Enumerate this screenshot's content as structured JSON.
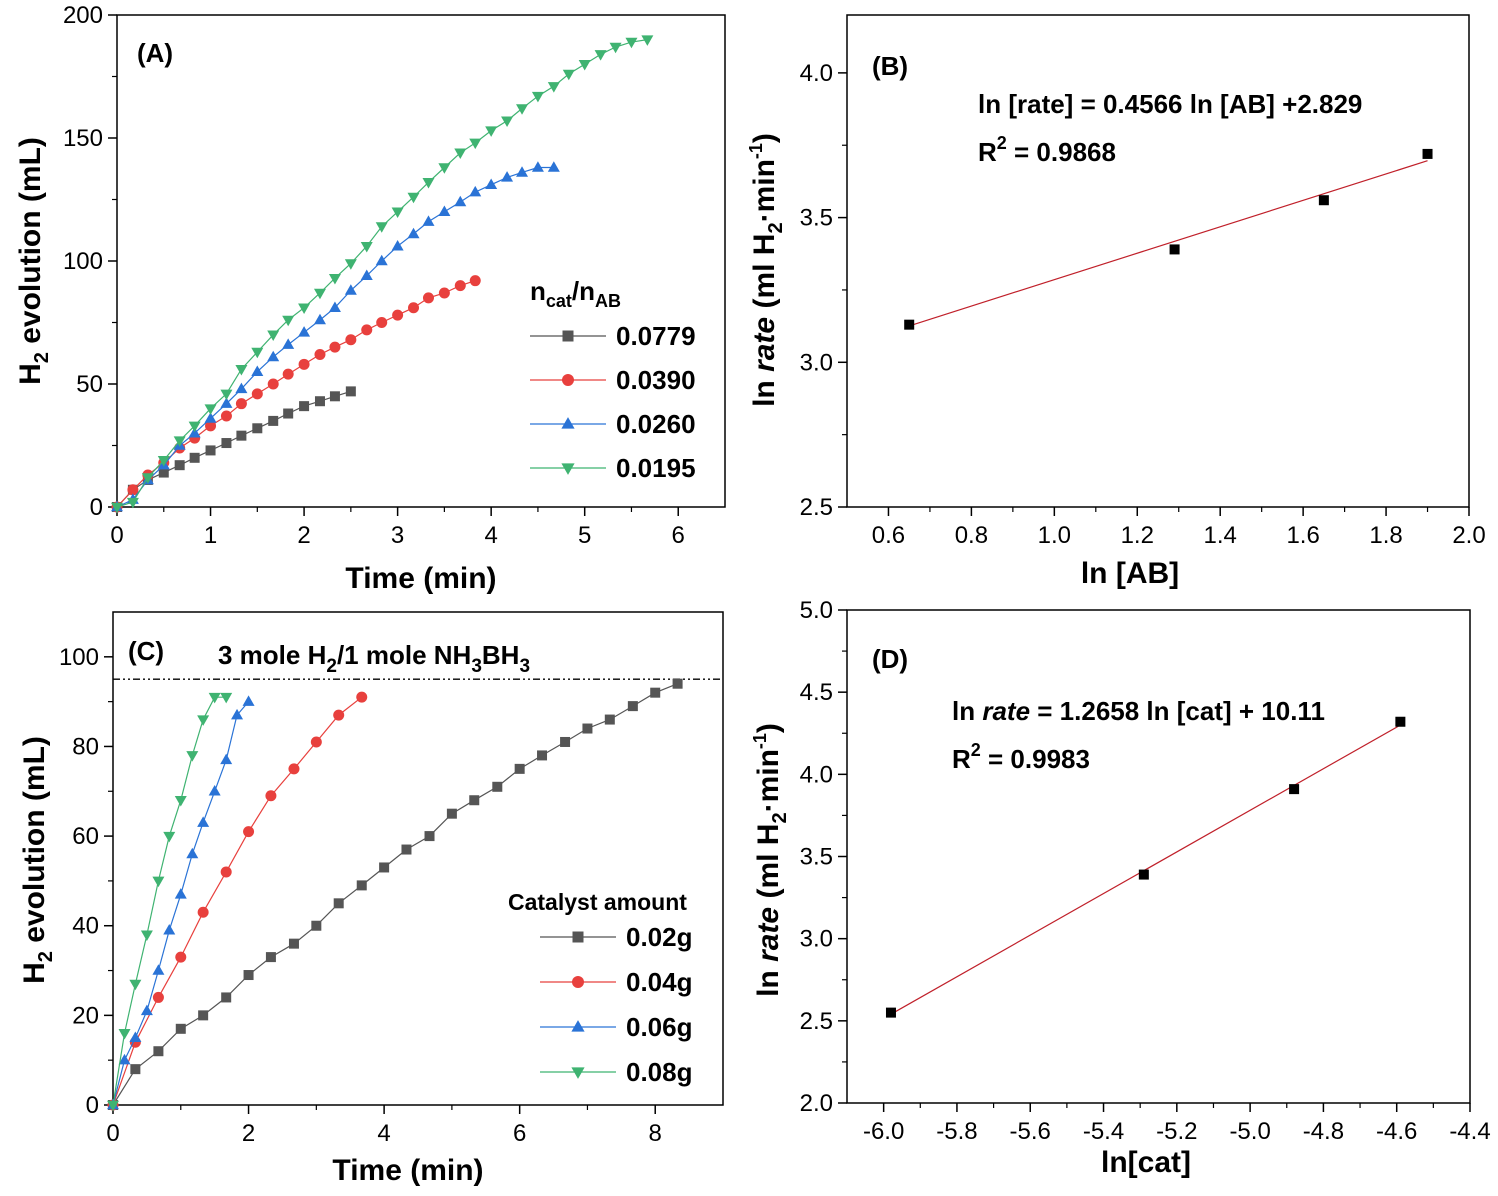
{
  "chart_data": [
    {
      "id": "A",
      "type": "line",
      "panel_label": "(A)",
      "xlabel": "Time (min)",
      "ylabel_main": "H",
      "ylabel_sub": "2",
      "ylabel_tail": " evolution (mL)",
      "xlim": [
        0,
        6.5
      ],
      "ylim": [
        0,
        200
      ],
      "xticks": [
        0,
        1,
        2,
        3,
        4,
        5,
        6
      ],
      "yticks": [
        0,
        50,
        100,
        150,
        200
      ],
      "legend_title_main": "n",
      "legend_title_sub1": "cat",
      "legend_title_mid": "/n",
      "legend_title_sub2": "AB",
      "series": [
        {
          "name": "0.0779",
          "color": "#555555",
          "marker": "square",
          "x": [
            0,
            0.17,
            0.33,
            0.5,
            0.67,
            0.83,
            1.0,
            1.17,
            1.33,
            1.5,
            1.67,
            1.83,
            2.0,
            2.17,
            2.33,
            2.5
          ],
          "y": [
            0,
            7,
            11,
            14,
            17,
            20,
            23,
            26,
            29,
            32,
            35,
            38,
            41,
            43,
            45,
            47
          ]
        },
        {
          "name": "0.0390",
          "color": "#e8403d",
          "marker": "circle",
          "x": [
            0,
            0.17,
            0.33,
            0.5,
            0.67,
            0.83,
            1.0,
            1.17,
            1.33,
            1.5,
            1.67,
            1.83,
            2.0,
            2.17,
            2.33,
            2.5,
            2.67,
            2.83,
            3.0,
            3.17,
            3.33,
            3.5,
            3.67,
            3.83
          ],
          "y": [
            0,
            7,
            13,
            18,
            24,
            28,
            33,
            37,
            42,
            46,
            50,
            54,
            58,
            62,
            65,
            68,
            72,
            75,
            78,
            81,
            85,
            87,
            90,
            92
          ]
        },
        {
          "name": "0.0260",
          "color": "#2a73d6",
          "marker": "triangle-up",
          "x": [
            0,
            0.17,
            0.33,
            0.5,
            0.67,
            0.83,
            1.0,
            1.17,
            1.33,
            1.5,
            1.67,
            1.83,
            2.0,
            2.17,
            2.33,
            2.5,
            2.67,
            2.83,
            3.0,
            3.17,
            3.33,
            3.5,
            3.67,
            3.83,
            4.0,
            4.17,
            4.33,
            4.5,
            4.67
          ],
          "y": [
            0,
            3,
            11,
            17,
            25,
            30,
            36,
            42,
            48,
            55,
            61,
            66,
            71,
            76,
            81,
            88,
            94,
            100,
            106,
            111,
            116,
            120,
            124,
            128,
            131,
            134,
            136,
            138,
            138
          ]
        },
        {
          "name": "0.0195",
          "color": "#3fb371",
          "marker": "triangle-down",
          "x": [
            0,
            0.17,
            0.33,
            0.5,
            0.67,
            0.83,
            1.0,
            1.17,
            1.33,
            1.5,
            1.67,
            1.83,
            2.0,
            2.17,
            2.33,
            2.5,
            2.67,
            2.83,
            3.0,
            3.17,
            3.33,
            3.5,
            3.67,
            3.83,
            4.0,
            4.17,
            4.33,
            4.5,
            4.67,
            4.83,
            5.0,
            5.17,
            5.33,
            5.5,
            5.67
          ],
          "y": [
            0,
            2,
            12,
            19,
            27,
            33,
            40,
            46,
            56,
            63,
            70,
            76,
            81,
            87,
            93,
            99,
            106,
            114,
            120,
            126,
            132,
            138,
            144,
            148,
            153,
            157,
            162,
            167,
            171,
            176,
            180,
            184,
            187,
            189,
            190
          ]
        }
      ]
    },
    {
      "id": "B",
      "type": "scatter",
      "panel_label": "(B)",
      "xlabel": "ln [AB]",
      "ylabel_pre": "ln ",
      "ylabel_it": "rate",
      "ylabel_post": " (ml H",
      "ylabel_sub": "2",
      "ylabel_post2": "·min",
      "ylabel_sup": "-1",
      "ylabel_end": ")",
      "xlim": [
        0.5,
        2.0
      ],
      "ylim": [
        2.5,
        4.2
      ],
      "xticks": [
        0.6,
        0.8,
        1.0,
        1.2,
        1.4,
        1.6,
        1.8,
        2.0
      ],
      "yticks": [
        2.5,
        3.0,
        3.5,
        4.0
      ],
      "equation": "ln [rate] = 0.4566 ln [AB] +2.829",
      "r2_prefix": "R",
      "r2_sup": "2",
      "r2_value": " = 0.9868",
      "points": {
        "x": [
          0.65,
          1.29,
          1.65,
          1.9
        ],
        "y": [
          3.13,
          3.39,
          3.56,
          3.72
        ]
      },
      "fit": {
        "slope": 0.4566,
        "intercept": 2.829,
        "x_range": [
          0.65,
          1.9
        ],
        "color": "#c0202a"
      }
    },
    {
      "id": "C",
      "type": "line",
      "panel_label": "(C)",
      "xlabel": "Time (min)",
      "ylabel_main": "H",
      "ylabel_sub": "2",
      "ylabel_tail": " evolution (mL)",
      "xlim": [
        0,
        9
      ],
      "ylim": [
        0,
        110
      ],
      "xticks": [
        0,
        2,
        4,
        6,
        8
      ],
      "yticks": [
        0,
        20,
        40,
        60,
        80,
        100
      ],
      "reference_line": 95,
      "ref_text_a": "3 mole H",
      "ref_text_sub1": "2",
      "ref_text_b": "/1 mole NH",
      "ref_text_sub2": "3",
      "ref_text_c": "BH",
      "ref_text_sub3": "3",
      "legend_title": "Catalyst amount",
      "series": [
        {
          "name": "0.02g",
          "color": "#555555",
          "marker": "square",
          "x": [
            0,
            0.33,
            0.67,
            1.0,
            1.33,
            1.67,
            2.0,
            2.33,
            2.67,
            3.0,
            3.33,
            3.67,
            4.0,
            4.33,
            4.67,
            5.0,
            5.33,
            5.67,
            6.0,
            6.33,
            6.67,
            7.0,
            7.33,
            7.67,
            8.0,
            8.33
          ],
          "y": [
            0,
            8,
            12,
            17,
            20,
            24,
            29,
            33,
            36,
            40,
            45,
            49,
            53,
            57,
            60,
            65,
            68,
            71,
            75,
            78,
            81,
            84,
            86,
            89,
            92,
            94
          ]
        },
        {
          "name": "0.04g",
          "color": "#e8403d",
          "marker": "circle",
          "x": [
            0,
            0.33,
            0.67,
            1.0,
            1.33,
            1.67,
            2.0,
            2.33,
            2.67,
            3.0,
            3.33,
            3.67
          ],
          "y": [
            0,
            14,
            24,
            33,
            43,
            52,
            61,
            69,
            75,
            81,
            87,
            91
          ]
        },
        {
          "name": "0.06g",
          "color": "#2a73d6",
          "marker": "triangle-up",
          "x": [
            0,
            0.17,
            0.33,
            0.5,
            0.67,
            0.83,
            1.0,
            1.17,
            1.33,
            1.5,
            1.67,
            1.83,
            2.0
          ],
          "y": [
            0,
            10,
            15,
            21,
            30,
            39,
            47,
            56,
            63,
            70,
            77,
            87,
            90
          ]
        },
        {
          "name": "0.08g",
          "color": "#3fb371",
          "marker": "triangle-down",
          "x": [
            0,
            0.17,
            0.33,
            0.5,
            0.67,
            0.83,
            1.0,
            1.17,
            1.33,
            1.5,
            1.67
          ],
          "y": [
            0,
            16,
            27,
            38,
            50,
            60,
            68,
            78,
            86,
            91,
            91
          ]
        }
      ]
    },
    {
      "id": "D",
      "type": "scatter",
      "panel_label": "(D)",
      "xlabel": "ln[cat]",
      "ylabel_pre": "ln ",
      "ylabel_it": "rate",
      "ylabel_post": " (ml H",
      "ylabel_sub": "2",
      "ylabel_post2": "·min",
      "ylabel_sup": "-1",
      "ylabel_end": ")",
      "xlim": [
        -6.1,
        -4.4
      ],
      "ylim": [
        2.0,
        5.0
      ],
      "xticks": [
        -6.0,
        -5.8,
        -5.6,
        -5.4,
        -5.2,
        -5.0,
        -4.8,
        -4.6,
        -4.4
      ],
      "yticks": [
        2.0,
        2.5,
        3.0,
        3.5,
        4.0,
        4.5,
        5.0
      ],
      "eq_pre": "ln ",
      "eq_it": "rate",
      "eq_post": " = 1.2658 ln [cat] + 10.11",
      "r2_prefix": "R",
      "r2_sup": "2",
      "r2_value": " = 0.9983",
      "points": {
        "x": [
          -5.98,
          -5.29,
          -4.88,
          -4.59
        ],
        "y": [
          2.55,
          3.39,
          3.91,
          4.32
        ]
      },
      "fit": {
        "slope": 1.2658,
        "intercept": 10.11,
        "x_range": [
          -5.98,
          -4.59
        ],
        "color": "#c0202a"
      }
    }
  ]
}
